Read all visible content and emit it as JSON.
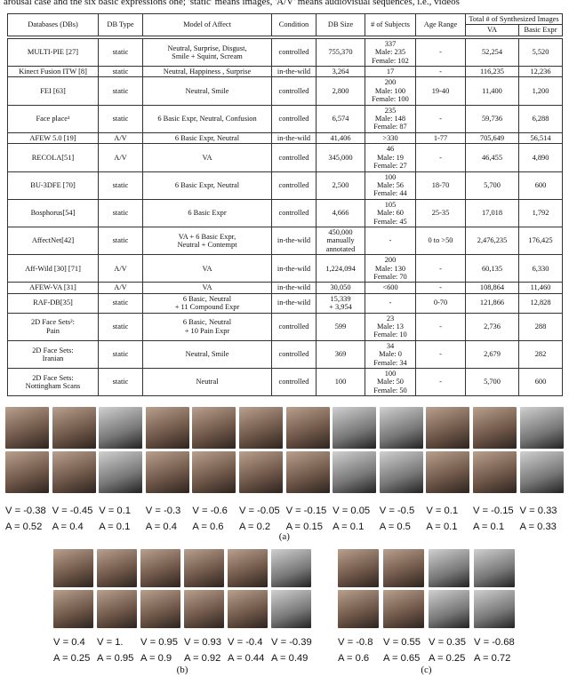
{
  "caption": "arousal case and the six basic expressions one; 'static' means images, 'A/V' means audiovisual sequences, i.e., videos",
  "table": {
    "headers": [
      "Databases (DBs)",
      "DB Type",
      "Model of Affect",
      "Condition",
      "DB Size",
      "# of Subjects",
      "Age Range",
      "Total # of Synthesized Images"
    ],
    "subheaders": [
      "VA",
      "Basic Expr"
    ],
    "rows": [
      [
        [
          "MULTI-PIE [27]"
        ],
        [
          "static"
        ],
        [
          "Neutral, Surprise, Disgust,",
          "Smile + Squint, Scream"
        ],
        [
          "controlled"
        ],
        [
          "755,370"
        ],
        [
          "337",
          "Male: 235",
          "Female: 102"
        ],
        [
          "-"
        ],
        [
          "52,254"
        ],
        [
          "5,520"
        ]
      ],
      [
        [
          "Kinect Fusion ITW [8]"
        ],
        [
          "static"
        ],
        [
          "Neutral, Happiness , Surprise"
        ],
        [
          "in-the-wild"
        ],
        [
          "3,264"
        ],
        [
          "17"
        ],
        [
          "-"
        ],
        [
          "116,235"
        ],
        [
          "12,236"
        ]
      ],
      [
        [
          "FEI [63]"
        ],
        [
          "static"
        ],
        [
          "Neutral, Smile"
        ],
        [
          "controlled"
        ],
        [
          "2,800"
        ],
        [
          "200",
          "Male: 100",
          "Female: 100"
        ],
        [
          "19-40"
        ],
        [
          "11,400"
        ],
        [
          "1,200"
        ]
      ],
      [
        [
          "Face place¹"
        ],
        [
          "static"
        ],
        [
          "6 Basic Expr, Neutral, Confusion"
        ],
        [
          "controlled"
        ],
        [
          "6,574"
        ],
        [
          "235",
          "Male: 148",
          "Female: 87"
        ],
        [
          "-"
        ],
        [
          "59,736"
        ],
        [
          "6,288"
        ]
      ],
      [
        [
          "AFEW 5.0 [19]"
        ],
        [
          "A/V"
        ],
        [
          "6 Basic Expr, Neutral"
        ],
        [
          "in-the-wild"
        ],
        [
          "41,406"
        ],
        [
          ">330"
        ],
        [
          "1-77"
        ],
        [
          "705,649"
        ],
        [
          "56,514"
        ]
      ],
      [
        [
          "RECOLA[51]"
        ],
        [
          "A/V"
        ],
        [
          "VA"
        ],
        [
          "controlled"
        ],
        [
          "345,000"
        ],
        [
          "46",
          "Male: 19",
          "Female: 27"
        ],
        [
          "-"
        ],
        [
          "46,455"
        ],
        [
          "4,890"
        ]
      ],
      [
        [
          "BU-3DFE [70]"
        ],
        [
          "static"
        ],
        [
          "6 Basic Expr, Neutral"
        ],
        [
          "controlled"
        ],
        [
          "2,500"
        ],
        [
          "100",
          "Male: 56",
          "Female: 44"
        ],
        [
          "18-70"
        ],
        [
          "5,700"
        ],
        [
          "600"
        ]
      ],
      [
        [
          "Bosphorus[54]"
        ],
        [
          "static"
        ],
        [
          "6 Basic Expr"
        ],
        [
          "controlled"
        ],
        [
          "4,666"
        ],
        [
          "105",
          "Male: 60",
          "Female: 45"
        ],
        [
          "25-35"
        ],
        [
          "17,018"
        ],
        [
          "1,792"
        ]
      ],
      [
        [
          "AffectNet[42]"
        ],
        [
          "static"
        ],
        [
          "VA + 6 Basic Expr,",
          "Neutral + Contempt"
        ],
        [
          "in-the-wild"
        ],
        [
          "450,000",
          "manually",
          "annotated"
        ],
        [
          "-"
        ],
        [
          "0 to >50"
        ],
        [
          "2,476,235"
        ],
        [
          "176,425"
        ]
      ],
      [
        [
          "Aff-Wild [30] [71]"
        ],
        [
          "A/V"
        ],
        [
          "VA"
        ],
        [
          "in-the-wild"
        ],
        [
          "1,224,094"
        ],
        [
          "200",
          "Male: 130",
          "Female: 70"
        ],
        [
          "-"
        ],
        [
          "60,135"
        ],
        [
          "6,330"
        ]
      ],
      [
        [
          "AFEW-VA [31]"
        ],
        [
          "A/V"
        ],
        [
          "VA"
        ],
        [
          "in-the-wild"
        ],
        [
          "30,050"
        ],
        [
          "<600"
        ],
        [
          "-"
        ],
        [
          "108,864"
        ],
        [
          "11,460"
        ]
      ],
      [
        [
          "RAF-DB[35]"
        ],
        [
          "static"
        ],
        [
          "6 Basic, Neutral",
          "+ 11 Compound Expr"
        ],
        [
          "in-the-wild"
        ],
        [
          "15,339",
          "+ 3,954"
        ],
        [
          "-"
        ],
        [
          "0-70"
        ],
        [
          "121,866"
        ],
        [
          "12,828"
        ]
      ],
      [
        [
          "2D Face Sets²:",
          "Pain"
        ],
        [
          "static"
        ],
        [
          "6 Basic, Neutral",
          "+ 10 Pain Expr"
        ],
        [
          "controlled"
        ],
        [
          "599"
        ],
        [
          "23",
          "Male: 13",
          "Female: 10"
        ],
        [
          "-"
        ],
        [
          "2,736"
        ],
        [
          "288"
        ]
      ],
      [
        [
          "2D Face Sets:",
          "Iranian"
        ],
        [
          "static"
        ],
        [
          "Neutral, Smile"
        ],
        [
          "controlled"
        ],
        [
          "369"
        ],
        [
          "34",
          "Male: 0",
          "Female: 34"
        ],
        [
          "-"
        ],
        [
          "2,679"
        ],
        [
          "282"
        ]
      ],
      [
        [
          "2D Face Sets:",
          "Nottingham Scans"
        ],
        [
          "static"
        ],
        [
          "Neutral"
        ],
        [
          "controlled"
        ],
        [
          "100"
        ],
        [
          "100",
          "Male: 50",
          "Female: 50"
        ],
        [
          "-"
        ],
        [
          "5,700"
        ],
        [
          "600"
        ]
      ]
    ]
  },
  "figure": {
    "panels": [
      {
        "label": "(a)",
        "faces": [
          {
            "v": "V = -0.38",
            "a": "A = 0.52"
          },
          {
            "v": "V = -0.45",
            "a": "A = 0.4"
          },
          {
            "v": "V = 0.1",
            "a": "A = 0.1"
          },
          {
            "v": "V = -0.3",
            "a": "A = 0.4"
          },
          {
            "v": "V = -0.6",
            "a": "A = 0.6"
          },
          {
            "v": "V = -0.05",
            "a": "A = 0.2"
          },
          {
            "v": "V = -0.15",
            "a": "A = 0.15"
          },
          {
            "v": "V = 0.05",
            "a": "A = 0.1"
          },
          {
            "v": "V = -0.5",
            "a": "A = 0.5"
          },
          {
            "v": "V = 0.1",
            "a": "A = 0.1"
          },
          {
            "v": "V = -0.15",
            "a": "A = 0.1"
          },
          {
            "v": "V = 0.33",
            "a": "A = 0.33"
          }
        ]
      },
      {
        "label": "(b)",
        "faces": [
          {
            "v": "V = 0.4",
            "a": "A = 0.25"
          },
          {
            "v": "V = 1.",
            "a": "A = 0.95"
          },
          {
            "v": "V = 0.95",
            "a": "A = 0.9"
          },
          {
            "v": "V = 0.93",
            "a": "A = 0.92"
          },
          {
            "v": "V = -0.4",
            "a": "A = 0.44"
          },
          {
            "v": "V = -0.39",
            "a": "A = 0.49"
          }
        ]
      },
      {
        "label": "(c)",
        "faces": [
          {
            "v": "V = -0.8",
            "a": "A = 0.6"
          },
          {
            "v": "V = 0.55",
            "a": "A = 0.65"
          },
          {
            "v": "V = 0.35",
            "a": "A = 0.25"
          },
          {
            "v": "V = -0.68",
            "a": "A = 0.72"
          }
        ]
      }
    ]
  }
}
